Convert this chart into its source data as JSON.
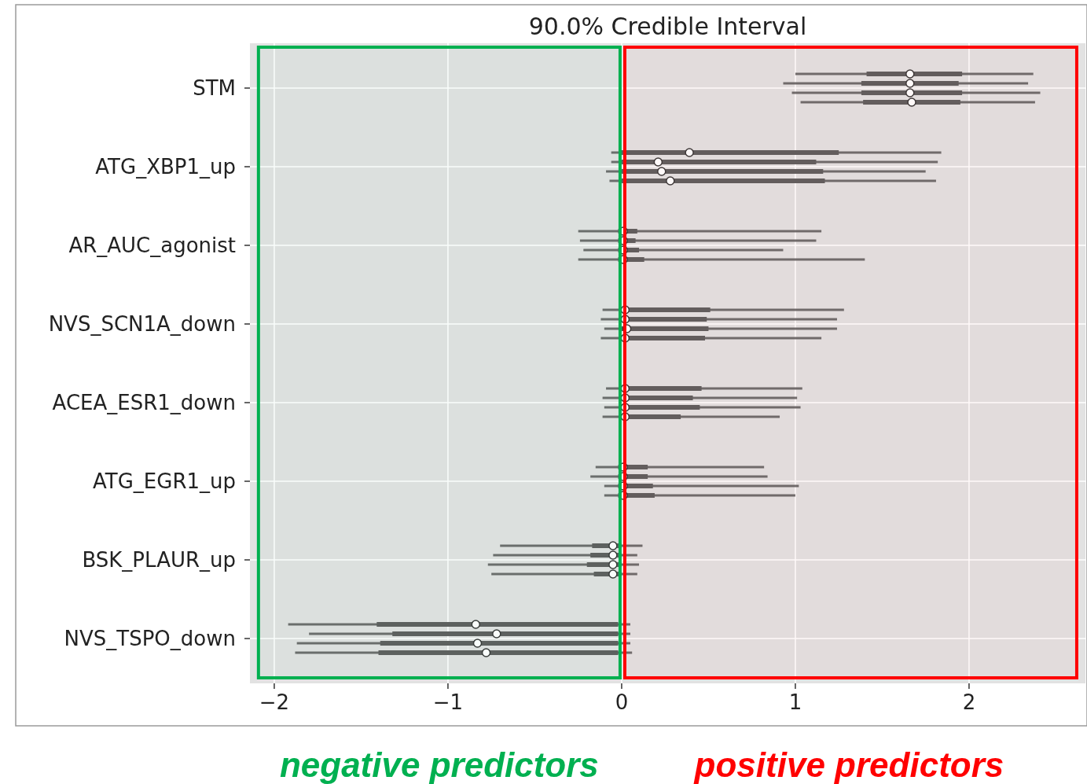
{
  "chart_data": {
    "type": "box",
    "title": "90.0% Credible Interval",
    "orientation": "horizontal",
    "marker": "circle",
    "grid": true,
    "categories": [
      "STM",
      "ATG_XBP1_up",
      "AR_AUC_agonist",
      "NVS_SCN1A_down",
      "ACEA_ESR1_down",
      "ATG_EGR1_up",
      "BSK_PLAUR_up",
      "NVS_TSPO_down"
    ],
    "xlim": [
      -2.14,
      2.67
    ],
    "xticks": [
      {
        "value": -2,
        "label": "−2"
      },
      {
        "value": -1,
        "label": "−1"
      },
      0,
      1,
      2
    ],
    "series": [
      {
        "color": "#606060",
        "boxes": [
          {
            "low": 1.0,
            "q1": 1.41,
            "median": 1.66,
            "q3": 1.96,
            "high": 2.37
          },
          {
            "low": -0.06,
            "q1": -0.01,
            "median": 0.39,
            "q3": 1.25,
            "high": 1.84
          },
          {
            "low": -0.25,
            "q1": -0.02,
            "median": 0.01,
            "q3": 0.09,
            "high": 1.15
          },
          {
            "low": -0.11,
            "q1": 0.0,
            "median": 0.02,
            "q3": 0.51,
            "high": 1.28
          },
          {
            "low": -0.09,
            "q1": 0.0,
            "median": 0.02,
            "q3": 0.46,
            "high": 1.04
          },
          {
            "low": -0.15,
            "q1": -0.02,
            "median": 0.01,
            "q3": 0.15,
            "high": 0.82
          },
          {
            "low": -0.7,
            "q1": -0.17,
            "median": -0.05,
            "q3": 0.0,
            "high": 0.12
          },
          {
            "low": -1.92,
            "q1": -1.41,
            "median": -0.84,
            "q3": -0.02,
            "high": 0.05
          }
        ]
      },
      {
        "color": "#606060",
        "boxes": [
          {
            "low": 0.93,
            "q1": 1.38,
            "median": 1.66,
            "q3": 1.94,
            "high": 2.34
          },
          {
            "low": -0.06,
            "q1": 0.0,
            "median": 0.21,
            "q3": 1.12,
            "high": 1.82
          },
          {
            "low": -0.24,
            "q1": -0.02,
            "median": 0.01,
            "q3": 0.08,
            "high": 1.12
          },
          {
            "low": -0.12,
            "q1": 0.0,
            "median": 0.02,
            "q3": 0.49,
            "high": 1.24
          },
          {
            "low": -0.11,
            "q1": 0.0,
            "median": 0.02,
            "q3": 0.41,
            "high": 1.01
          },
          {
            "low": -0.18,
            "q1": -0.02,
            "median": 0.01,
            "q3": 0.15,
            "high": 0.84
          },
          {
            "low": -0.74,
            "q1": -0.18,
            "median": -0.05,
            "q3": 0.0,
            "high": 0.09
          },
          {
            "low": -1.8,
            "q1": -1.32,
            "median": -0.72,
            "q3": -0.02,
            "high": 0.05
          }
        ]
      },
      {
        "color": "#606060",
        "boxes": [
          {
            "low": 0.98,
            "q1": 1.38,
            "median": 1.66,
            "q3": 1.96,
            "high": 2.41
          },
          {
            "low": -0.09,
            "q1": 0.0,
            "median": 0.23,
            "q3": 1.16,
            "high": 1.75
          },
          {
            "low": -0.22,
            "q1": -0.02,
            "median": 0.01,
            "q3": 0.1,
            "high": 0.93
          },
          {
            "low": -0.1,
            "q1": 0.0,
            "median": 0.03,
            "q3": 0.5,
            "high": 1.24
          },
          {
            "low": -0.1,
            "q1": 0.0,
            "median": 0.02,
            "q3": 0.45,
            "high": 1.03
          },
          {
            "low": -0.1,
            "q1": -0.02,
            "median": 0.01,
            "q3": 0.18,
            "high": 1.02
          },
          {
            "low": -0.77,
            "q1": -0.2,
            "median": -0.05,
            "q3": 0.0,
            "high": 0.1
          },
          {
            "low": -1.87,
            "q1": -1.39,
            "median": -0.83,
            "q3": -0.02,
            "high": 0.05
          }
        ]
      },
      {
        "color": "#606060",
        "boxes": [
          {
            "low": 1.03,
            "q1": 1.39,
            "median": 1.67,
            "q3": 1.95,
            "high": 2.38
          },
          {
            "low": -0.07,
            "q1": 0.0,
            "median": 0.28,
            "q3": 1.17,
            "high": 1.81
          },
          {
            "low": -0.25,
            "q1": -0.02,
            "median": 0.01,
            "q3": 0.13,
            "high": 1.4
          },
          {
            "low": -0.12,
            "q1": 0.0,
            "median": 0.02,
            "q3": 0.48,
            "high": 1.15
          },
          {
            "low": -0.11,
            "q1": 0.0,
            "median": 0.02,
            "q3": 0.34,
            "high": 0.91
          },
          {
            "low": -0.1,
            "q1": -0.02,
            "median": 0.01,
            "q3": 0.19,
            "high": 1.0
          },
          {
            "low": -0.75,
            "q1": -0.16,
            "median": -0.05,
            "q3": 0.0,
            "high": 0.09
          },
          {
            "low": -1.88,
            "q1": -1.4,
            "median": -0.78,
            "q3": -0.02,
            "high": 0.06
          }
        ]
      }
    ],
    "bands": [
      {
        "axis": "x",
        "from": -2.1,
        "to": 0,
        "label": "negative predictors",
        "color": "#00b050"
      },
      {
        "axis": "x",
        "from": 0,
        "to": 2.62,
        "label": "positive predictors",
        "color": "#ff0000"
      }
    ]
  }
}
